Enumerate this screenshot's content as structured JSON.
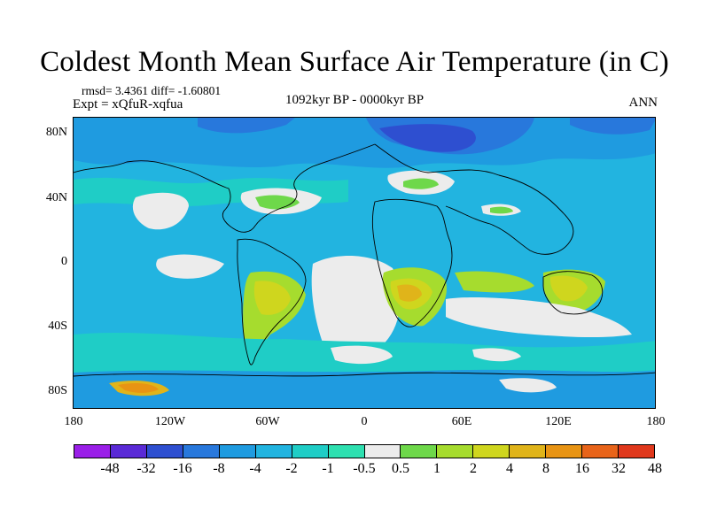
{
  "title": "Coldest Month Mean Surface Air Temperature (in C)",
  "stats": "rmsd= 3.4361 diff= -1.60801",
  "experiment": "Expt = xQfuR-xqfua",
  "period": "1092kyr BP - 0000kyr BP",
  "season": "ANN",
  "lat_labels": [
    "80N",
    "40N",
    "0",
    "40S",
    "80S"
  ],
  "lon_labels": [
    "180",
    "120W",
    "60W",
    "0",
    "60E",
    "120E",
    "180"
  ],
  "colorbar": {
    "labels": [
      "-48",
      "-32",
      "-16",
      "-8",
      "-4",
      "-2",
      "-1",
      "-0.5",
      "0.5",
      "1",
      "2",
      "4",
      "8",
      "16",
      "32",
      "48"
    ],
    "colors": [
      "#9a1fe8",
      "#5a2ad6",
      "#2e4fd0",
      "#2878dc",
      "#1f9be0",
      "#22b4e0",
      "#1fcdc6",
      "#2ee0b0",
      "#ececec",
      "#6ed84a",
      "#a6dc2e",
      "#cfd61e",
      "#e0b41a",
      "#e89414",
      "#e8641a",
      "#e0381c"
    ]
  }
}
